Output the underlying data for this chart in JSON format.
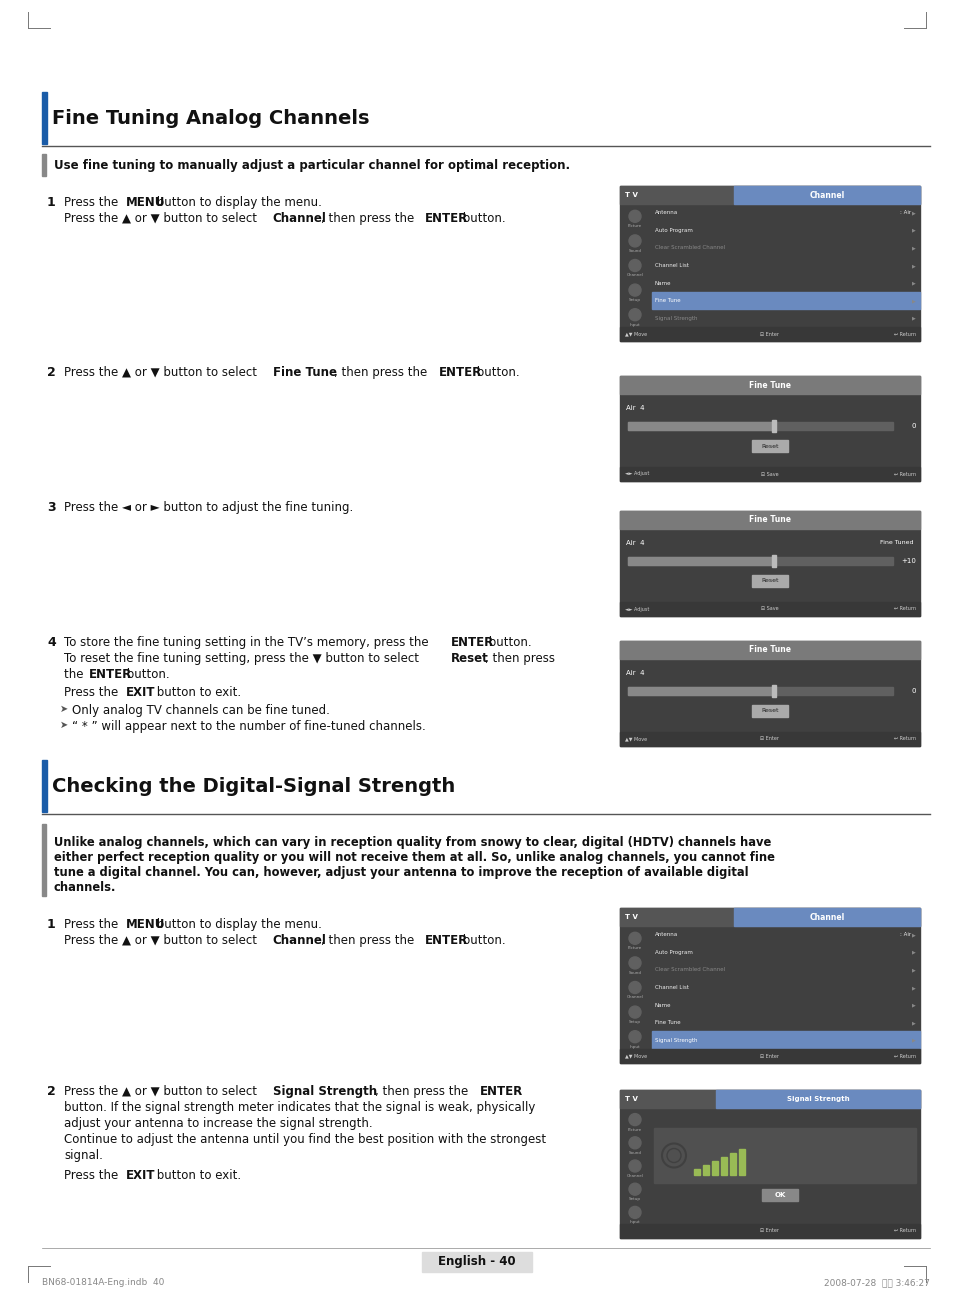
{
  "page_bg": "#ffffff",
  "section1_title": "Fine Tuning Analog Channels",
  "section1_subtitle": "Use fine tuning to manually adjust a particular channel for optimal reception.",
  "section2_title": "Checking the Digital-Signal Strength",
  "section2_para_lines": [
    "Unlike analog channels, which can vary in reception quality from snowy to clear, digital (HDTV) channels have",
    "either perfect reception quality or you will not receive them at all. So, unlike analog channels, you cannot fine",
    "tune a digital channel. You can, however, adjust your antenna to improve the reception of available digital",
    "channels."
  ],
  "footer_text": "English - 40",
  "note1": "Only analog TV channels can be fine tuned.",
  "note2": "“ * ” will appear next to the number of fine-tuned channels.",
  "screen_dark": "#404040",
  "screen_mid": "#505050",
  "screen_light": "#686868",
  "screen_highlight": "#6a8abf",
  "screen_sidebar": "#585858",
  "sidebar_icon_color": "#aaaaaa",
  "menu_text_white": "#eeeeee",
  "menu_text_dim": "#888888",
  "bottom_bar": "#383838",
  "bottom_text": "#cccccc",
  "slider_bg": "#888888",
  "slider_handle": "#bbbbbb",
  "reset_btn": "#aaaaaa",
  "reset_text": "#222222",
  "signal_bar_color": "#99bb55",
  "title_bar_tv_bg": "#555555",
  "title_bar_ch_bg": "#6a8abf",
  "fine_tune_title_bg": "#7a7a7a"
}
